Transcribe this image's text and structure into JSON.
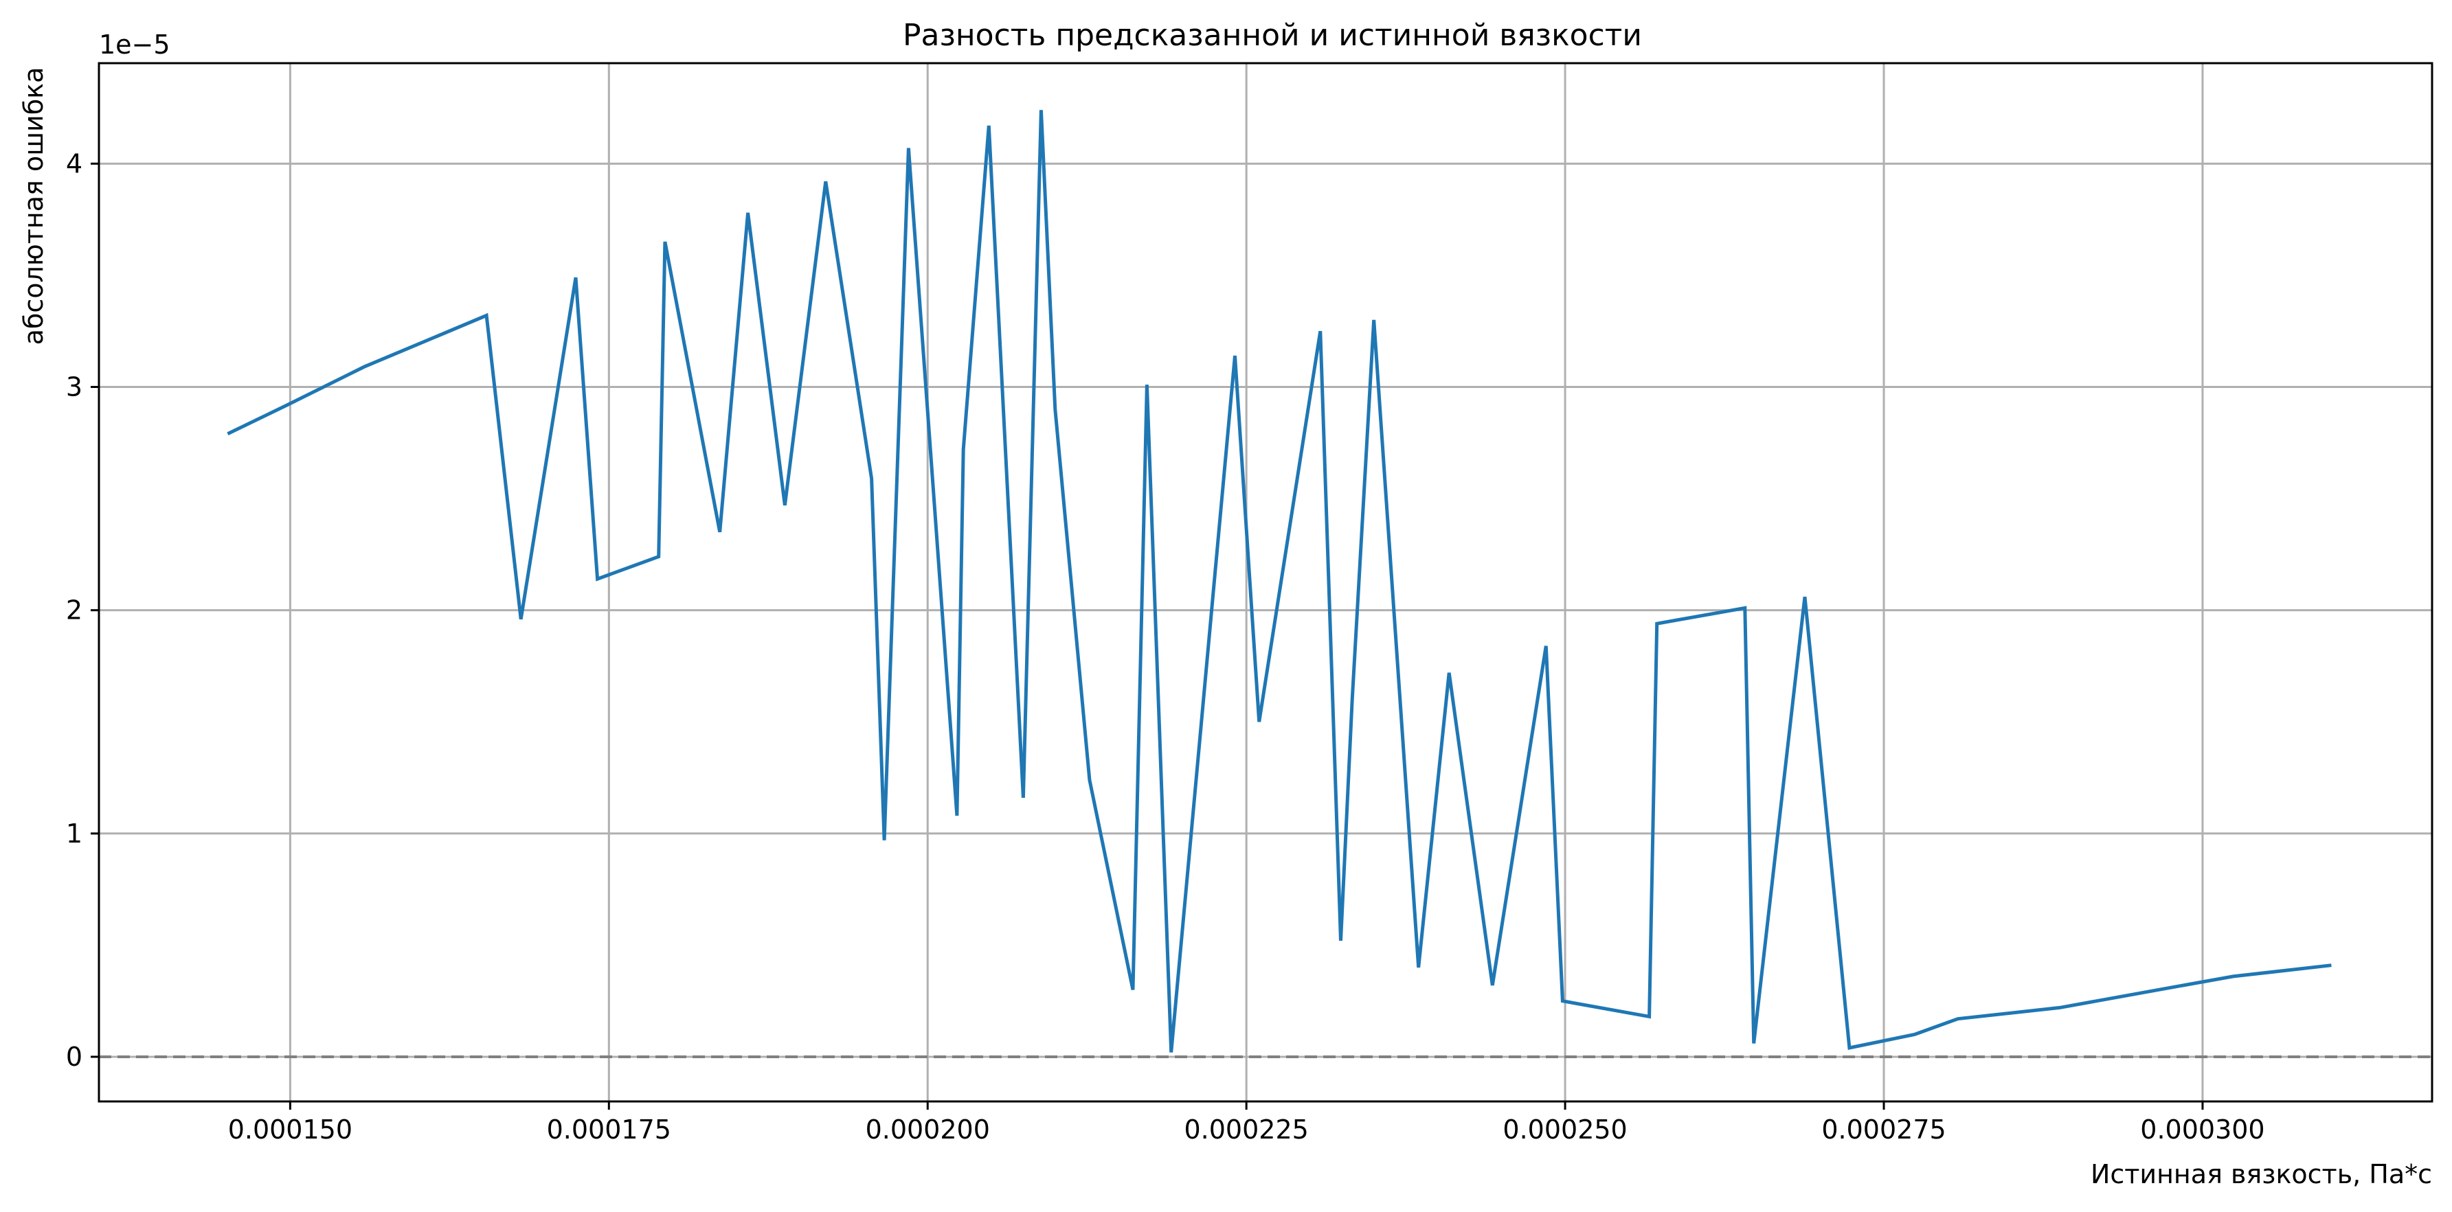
{
  "chart_data": {
    "type": "line",
    "title": "Разность предсказанной и истинной вязкости",
    "xlabel": "Истинная вязкость, Па*с",
    "ylabel": "абсолютная ошибка",
    "y_offset_label": "1e−5",
    "xlim": [
      0.000135,
      0.000318
    ],
    "ylim": [
      -0.2,
      4.45
    ],
    "x_ticks": [
      0.00015,
      0.000175,
      0.0002,
      0.000225,
      0.00025,
      0.000275,
      0.0003
    ],
    "x_tick_labels": [
      "0.000150",
      "0.000175",
      "0.000200",
      "0.000225",
      "0.000250",
      "0.000275",
      "0.000300"
    ],
    "y_ticks": [
      0,
      1,
      2,
      3,
      4
    ],
    "y_tick_labels": [
      "0",
      "1",
      "2",
      "3",
      "4"
    ],
    "y_unit_multiplier": "1e-5",
    "grid": true,
    "reference_line": {
      "y": 0,
      "style": "dashed",
      "color": "#808080"
    },
    "series_color": "#1f77b4",
    "series": [
      {
        "x": [
          0.0001451,
          0.0001498,
          0.0001558,
          0.0001654,
          0.0001681,
          0.0001724,
          0.0001741,
          0.0001789,
          0.0001794,
          0.0001837,
          0.0001859,
          0.0001888,
          0.000192,
          0.0001956,
          0.0001966,
          0.0001985,
          0.0002023,
          0.0002028,
          0.0002048,
          0.0002075,
          0.0002089,
          0.00021,
          0.0002127,
          0.0002161,
          0.0002172,
          0.0002191,
          0.0002241,
          0.000226,
          0.0002308,
          0.0002324,
          0.0002333,
          0.000235,
          0.0002385,
          0.0002409,
          0.0002443,
          0.0002485,
          0.0002498,
          0.0002566,
          0.0002572,
          0.0002641,
          0.0002648,
          0.0002688,
          0.0002723,
          0.0002774,
          0.0002808,
          0.0002888,
          0.0002975,
          0.0003024,
          0.0003101
        ],
        "values": [
          2.79,
          2.92,
          3.09,
          3.32,
          1.96,
          3.49,
          2.14,
          2.24,
          3.65,
          2.35,
          3.78,
          2.47,
          3.92,
          2.59,
          0.97,
          4.07,
          1.08,
          2.72,
          4.17,
          1.16,
          4.24,
          2.9,
          1.24,
          0.3,
          3.01,
          0.02,
          3.14,
          1.5,
          3.25,
          0.52,
          1.6,
          3.3,
          0.4,
          1.72,
          0.32,
          1.84,
          0.25,
          0.18,
          1.94,
          2.01,
          0.06,
          2.06,
          0.04,
          0.1,
          0.17,
          0.22,
          0.31,
          0.36,
          0.41
        ]
      }
    ]
  }
}
